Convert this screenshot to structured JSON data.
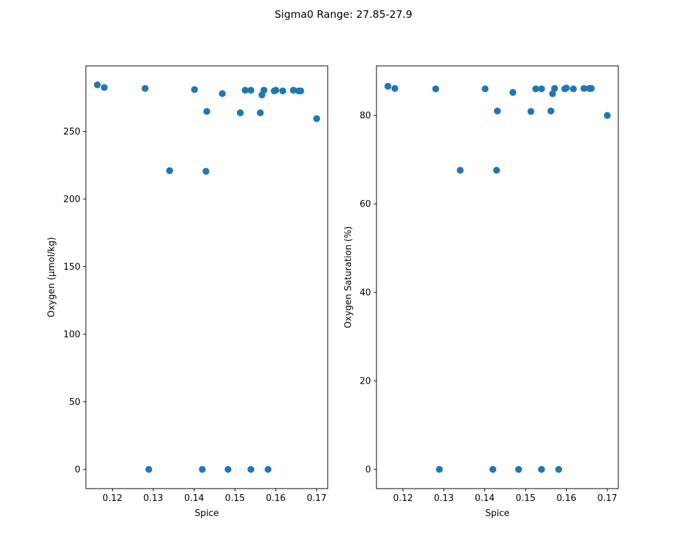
{
  "figure_title": "Sigma0 Range: 27.85-27.9",
  "colors": {
    "marker": "#1f77b4",
    "axes": "#000000"
  },
  "chart_data": [
    {
      "type": "scatter",
      "title": "",
      "xlabel": "Spice",
      "ylabel": "Oxygen (µmol/kg)",
      "xlim": [
        0.1135,
        0.1727
      ],
      "ylim": [
        -14.2,
        298.5
      ],
      "xticks": [
        0.12,
        0.13,
        0.14,
        0.15,
        0.16,
        0.17
      ],
      "xtick_labels": [
        "0.12",
        "0.13",
        "0.14",
        "0.15",
        "0.16",
        "0.17"
      ],
      "yticks": [
        0,
        50,
        100,
        150,
        200,
        250
      ],
      "ytick_labels": [
        "0",
        "50",
        "100",
        "150",
        "200",
        "250"
      ],
      "grid": false,
      "points": [
        {
          "x": 0.1163,
          "y": 284.5
        },
        {
          "x": 0.118,
          "y": 282.5
        },
        {
          "x": 0.128,
          "y": 281.8
        },
        {
          "x": 0.1289,
          "y": 0.0
        },
        {
          "x": 0.134,
          "y": 221.0
        },
        {
          "x": 0.1401,
          "y": 281.0
        },
        {
          "x": 0.142,
          "y": 0.0
        },
        {
          "x": 0.1429,
          "y": 220.5
        },
        {
          "x": 0.1431,
          "y": 264.8
        },
        {
          "x": 0.1469,
          "y": 278.0
        },
        {
          "x": 0.1483,
          "y": 0.0
        },
        {
          "x": 0.1513,
          "y": 263.8
        },
        {
          "x": 0.1525,
          "y": 280.5
        },
        {
          "x": 0.1539,
          "y": 280.5
        },
        {
          "x": 0.1539,
          "y": 0.0
        },
        {
          "x": 0.1562,
          "y": 263.8
        },
        {
          "x": 0.1566,
          "y": 277.0
        },
        {
          "x": 0.1571,
          "y": 280.5
        },
        {
          "x": 0.1581,
          "y": 0.0
        },
        {
          "x": 0.1596,
          "y": 280.0
        },
        {
          "x": 0.16,
          "y": 280.5
        },
        {
          "x": 0.1617,
          "y": 280.0
        },
        {
          "x": 0.1643,
          "y": 280.5
        },
        {
          "x": 0.1656,
          "y": 280.0
        },
        {
          "x": 0.1661,
          "y": 280.0
        },
        {
          "x": 0.17,
          "y": 259.5
        }
      ]
    },
    {
      "type": "scatter",
      "title": "",
      "xlabel": "Spice",
      "ylabel": "Oxygen Saturation (%)",
      "xlim": [
        0.1135,
        0.1727
      ],
      "ylim": [
        -4.35,
        91.2
      ],
      "xticks": [
        0.12,
        0.13,
        0.14,
        0.15,
        0.16,
        0.17
      ],
      "xtick_labels": [
        "0.12",
        "0.13",
        "0.14",
        "0.15",
        "0.16",
        "0.17"
      ],
      "yticks": [
        0,
        20,
        40,
        60,
        80
      ],
      "ytick_labels": [
        "0",
        "20",
        "40",
        "60",
        "80"
      ],
      "grid": false,
      "points": [
        {
          "x": 0.1163,
          "y": 86.6
        },
        {
          "x": 0.118,
          "y": 86.1
        },
        {
          "x": 0.128,
          "y": 86.0
        },
        {
          "x": 0.1289,
          "y": 0.0
        },
        {
          "x": 0.134,
          "y": 67.6
        },
        {
          "x": 0.1401,
          "y": 86.0
        },
        {
          "x": 0.142,
          "y": 0.0
        },
        {
          "x": 0.1429,
          "y": 67.6
        },
        {
          "x": 0.1431,
          "y": 81.0
        },
        {
          "x": 0.1469,
          "y": 85.2
        },
        {
          "x": 0.1483,
          "y": 0.0
        },
        {
          "x": 0.1513,
          "y": 80.9
        },
        {
          "x": 0.1525,
          "y": 86.0
        },
        {
          "x": 0.1539,
          "y": 86.0
        },
        {
          "x": 0.1539,
          "y": 0.0
        },
        {
          "x": 0.1562,
          "y": 81.0
        },
        {
          "x": 0.1566,
          "y": 84.9
        },
        {
          "x": 0.1571,
          "y": 86.1
        },
        {
          "x": 0.1581,
          "y": 0.0
        },
        {
          "x": 0.1596,
          "y": 86.0
        },
        {
          "x": 0.16,
          "y": 86.2
        },
        {
          "x": 0.1617,
          "y": 86.0
        },
        {
          "x": 0.1643,
          "y": 86.1
        },
        {
          "x": 0.1656,
          "y": 86.1
        },
        {
          "x": 0.1661,
          "y": 86.1
        },
        {
          "x": 0.17,
          "y": 80.0
        }
      ]
    }
  ]
}
